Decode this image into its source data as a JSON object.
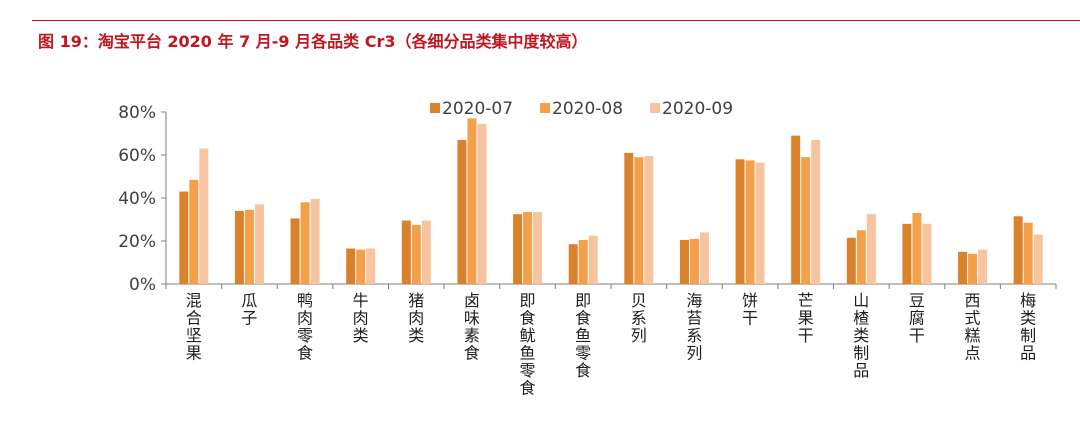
{
  "header": {
    "title": "图 19：淘宝平台 2020 年 7 月-9 月各品类 Cr3（各细分品类集中度较高）"
  },
  "colors": {
    "accent": "#c0161f",
    "axis": "#7f7f7f"
  },
  "chart_data": {
    "type": "bar",
    "title": "",
    "xlabel": "",
    "ylabel": "",
    "ylim": [
      0,
      80
    ],
    "yticks": [
      0,
      20,
      40,
      60,
      80
    ],
    "ytick_labels": [
      "0%",
      "20%",
      "40%",
      "60%",
      "80%"
    ],
    "grid": false,
    "legend_position": "top",
    "categories": [
      "混合坚果",
      "瓜子",
      "鸭肉零食",
      "牛肉类",
      "猪肉类",
      "卤味素食",
      "即食鱿鱼零食",
      "即食鱼零食",
      "贝系列",
      "海苔系列",
      "饼干",
      "芒果干",
      "山楂类制品",
      "豆腐干",
      "西式糕点",
      "梅类制品"
    ],
    "series": [
      {
        "name": "2020-07",
        "color": "#d9822b",
        "values": [
          43,
          34,
          30.5,
          16.5,
          29.5,
          67,
          32.5,
          18.5,
          61,
          20.5,
          58,
          69,
          21.5,
          28,
          15,
          31.5
        ]
      },
      {
        "name": "2020-08",
        "color": "#f4a04a",
        "values": [
          48.5,
          34.5,
          38,
          16,
          27.5,
          77,
          33.5,
          20.5,
          59,
          21,
          57.5,
          59,
          25,
          33,
          14,
          28.5
        ]
      },
      {
        "name": "2020-09",
        "color": "#f8c4a0",
        "values": [
          63,
          37,
          39.5,
          16.5,
          29.5,
          74.5,
          33.5,
          22.5,
          59.5,
          24,
          56.5,
          67,
          32.5,
          28,
          16,
          23
        ]
      }
    ]
  }
}
